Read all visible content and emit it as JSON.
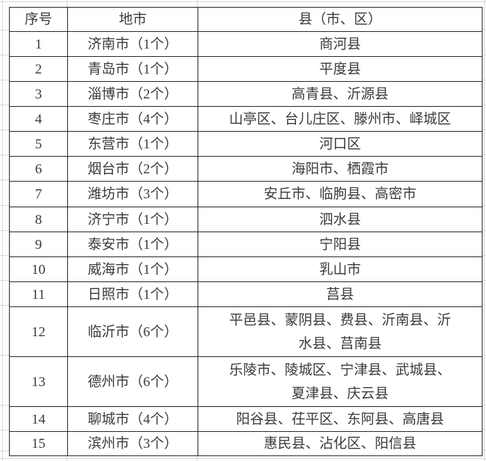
{
  "table": {
    "headers": [
      "序号",
      "地市",
      "县（市、区）"
    ],
    "rows": [
      {
        "no": "1",
        "city": "济南市（1个）",
        "counties": "商河县"
      },
      {
        "no": "2",
        "city": "青岛市（1个）",
        "counties": "平度县"
      },
      {
        "no": "3",
        "city": "淄博市（2个）",
        "counties": "高青县、沂源县"
      },
      {
        "no": "4",
        "city": "枣庄市（4个）",
        "counties": "山亭区、台儿庄区、滕州市、峄城区"
      },
      {
        "no": "5",
        "city": "东营市（1个）",
        "counties": "河口区"
      },
      {
        "no": "6",
        "city": "烟台市（2个）",
        "counties": "海阳市、栖霞市"
      },
      {
        "no": "7",
        "city": "潍坊市（3个）",
        "counties": "安丘市、临朐县、高密市"
      },
      {
        "no": "8",
        "city": "济宁市（1个）",
        "counties": "泗水县"
      },
      {
        "no": "9",
        "city": "泰安市（1个）",
        "counties": "宁阳县"
      },
      {
        "no": "10",
        "city": "威海市（1个）",
        "counties": "乳山市"
      },
      {
        "no": "11",
        "city": "日照市（1个）",
        "counties": "莒县"
      },
      {
        "no": "12",
        "city": "临沂市（6个）",
        "counties": "平邑县、蒙阴县、费县、沂南县、沂水县、莒南县"
      },
      {
        "no": "13",
        "city": "德州市（6个）",
        "counties": "乐陵市、陵城区、宁津县、武城县、夏津县、庆云县"
      },
      {
        "no": "14",
        "city": "聊城市（4个）",
        "counties": "阳谷县、茌平区、东阿县、高唐县"
      },
      {
        "no": "15",
        "city": "滨州市（3个）",
        "counties": "惠民县、沾化区、阳信县"
      }
    ],
    "colors": {
      "border": "#1b1b1b",
      "text": "#3b3b3b",
      "gridline": "#d6d6d6",
      "background": "#ffffff"
    }
  }
}
